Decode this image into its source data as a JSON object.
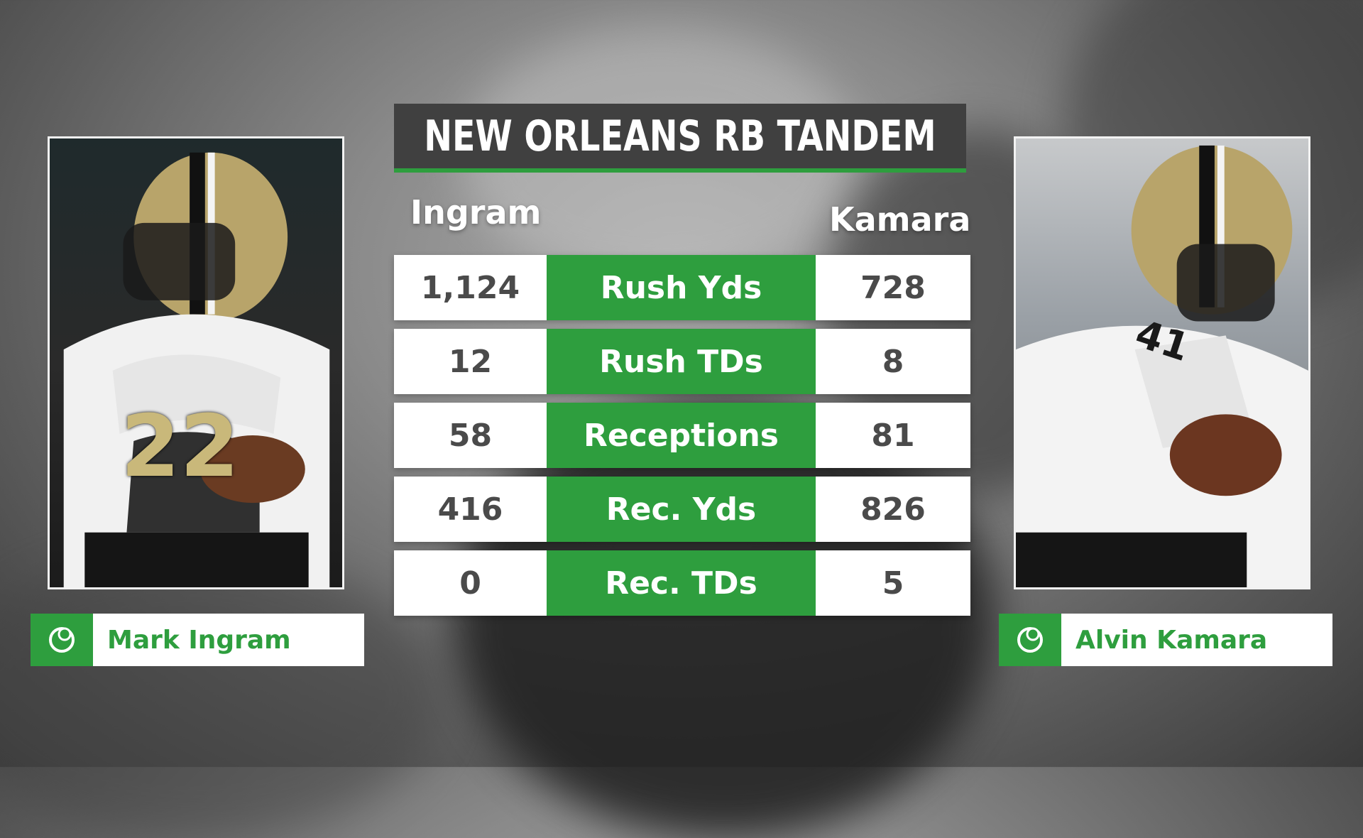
{
  "title": "NEW ORLEANS RB TANDEM",
  "columns": {
    "left": "Ingram",
    "right": "Kamara"
  },
  "stats": [
    {
      "label": "Rush Yds",
      "left": "1,124",
      "right": "728"
    },
    {
      "label": "Rush TDs",
      "left": "12",
      "right": "8"
    },
    {
      "label": "Receptions",
      "left": "58",
      "right": "81"
    },
    {
      "label": "Rec. Yds",
      "left": "416",
      "right": "826"
    },
    {
      "label": "Rec. TDs",
      "left": "0",
      "right": "5"
    }
  ],
  "players": {
    "left": {
      "name": "Mark Ingram",
      "jersey_number": "22"
    },
    "right": {
      "name": "Alvin Kamara",
      "jersey_number": "41"
    }
  },
  "colors": {
    "accent": "#2e9e3e",
    "title_bg": "#404040",
    "cell_bg": "#ffffff",
    "value_text": "#4a4a4a"
  },
  "icons": {
    "name_tag": "sportsline-logo-icon"
  }
}
